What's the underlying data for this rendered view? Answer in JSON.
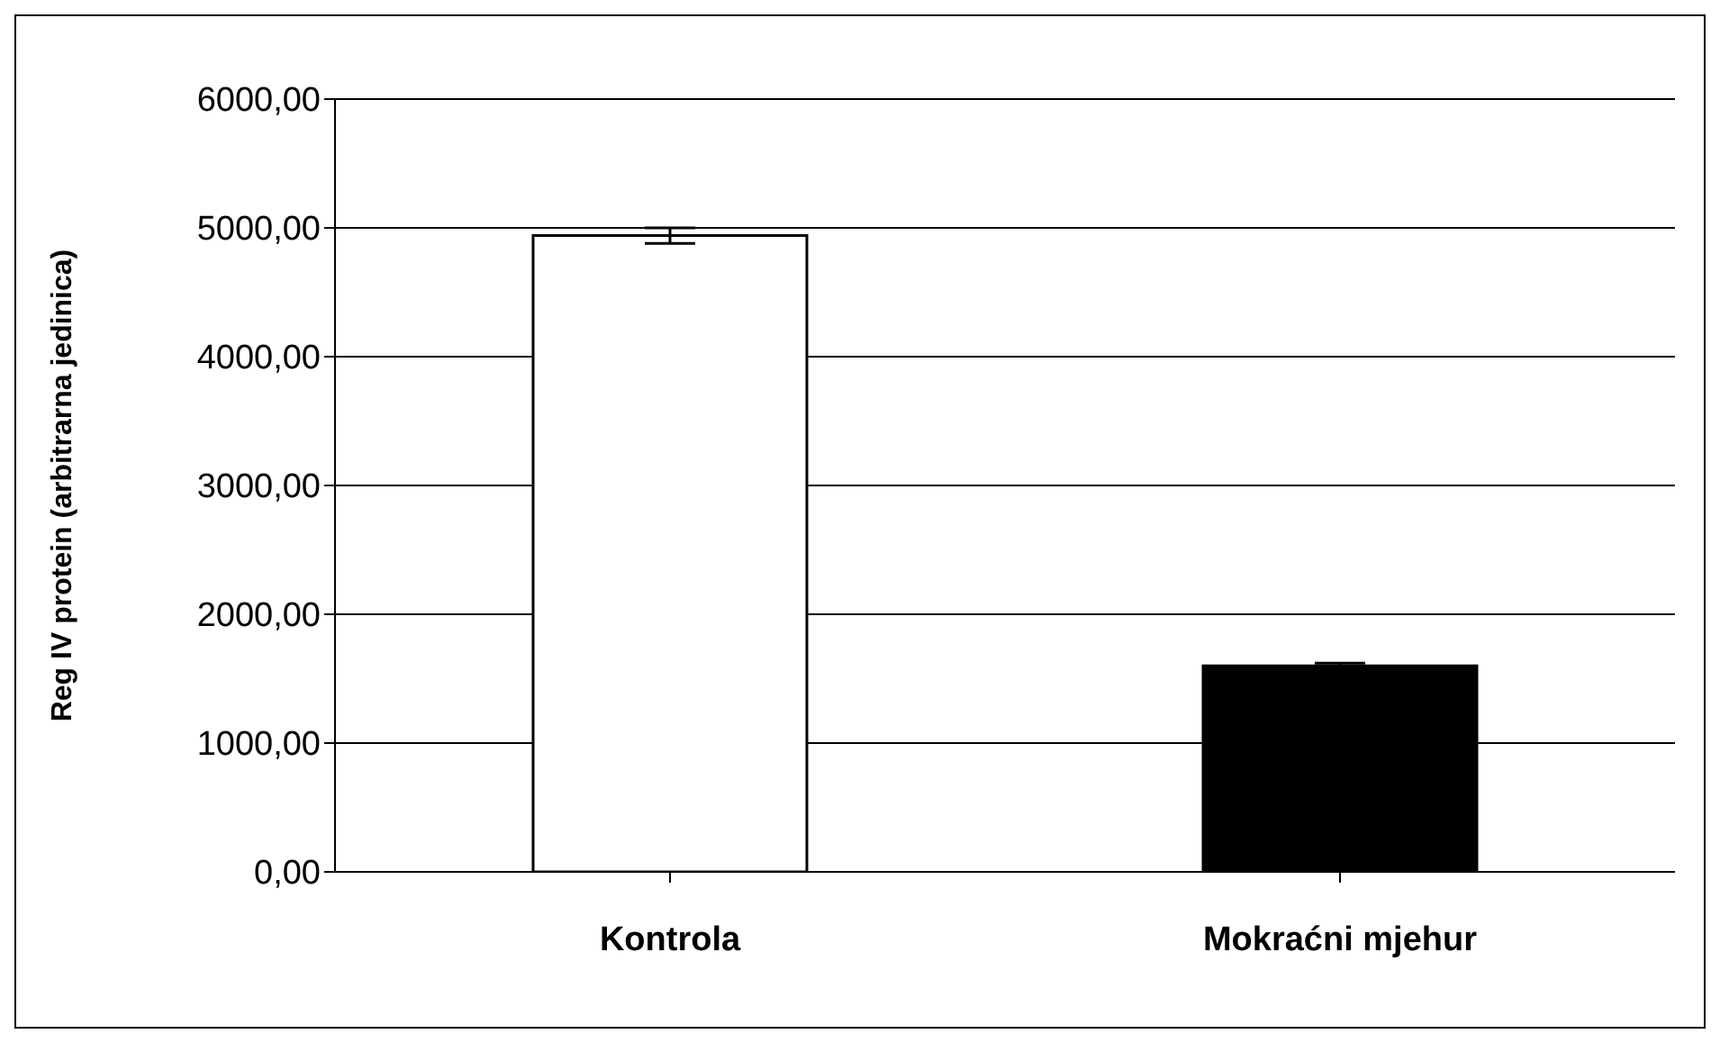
{
  "chart_data": {
    "type": "bar",
    "categories": [
      "Kontrola",
      "Mokraćni mjehur"
    ],
    "values": [
      4940,
      1600
    ],
    "colors": [
      "#ffffff",
      "#000000"
    ],
    "errors": [
      60,
      20
    ],
    "ylabel": "Reg IV protein (arbitrarna jedinica)",
    "ylim": [
      0,
      6000
    ],
    "yticks": [
      {
        "value": 0,
        "label": "0,00"
      },
      {
        "value": 1000,
        "label": "1000,00"
      },
      {
        "value": 2000,
        "label": "2000,00"
      },
      {
        "value": 3000,
        "label": "3000,00"
      },
      {
        "value": 4000,
        "label": "4000,00"
      },
      {
        "value": 5000,
        "label": "5000,00"
      },
      {
        "value": 6000,
        "label": "6000,00"
      }
    ],
    "grid": "y",
    "legend": false
  }
}
